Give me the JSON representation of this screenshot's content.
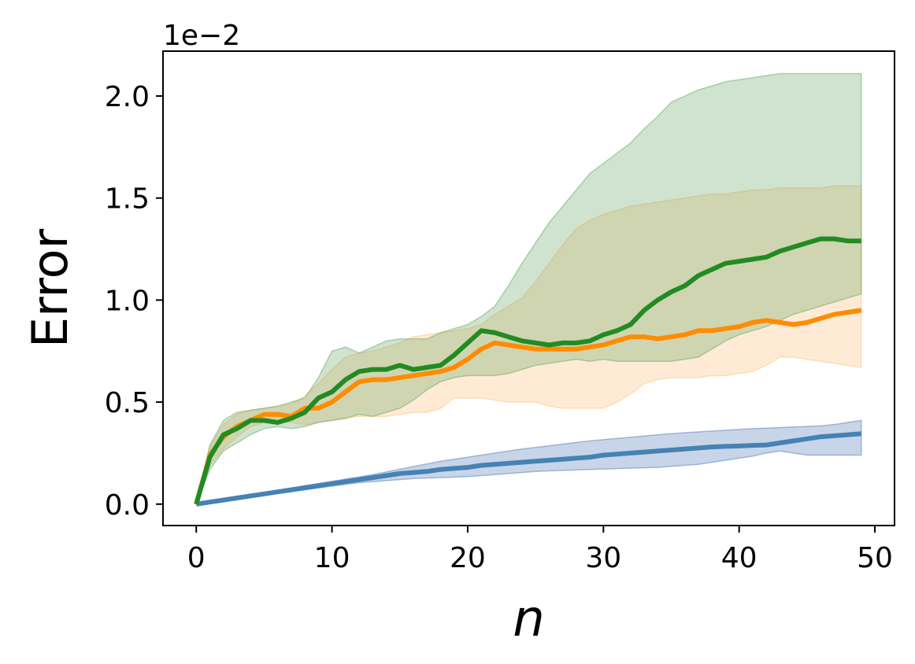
{
  "chart_data": {
    "type": "line",
    "title": "",
    "xlabel": "n",
    "ylabel": "Error",
    "y_scale_label": "1e−2",
    "xlim": [
      -2.45,
      51.45
    ],
    "ylim": [
      -0.105,
      2.22
    ],
    "x_ticks": [
      0,
      10,
      20,
      30,
      40,
      50
    ],
    "x_tick_labels": [
      "0",
      "10",
      "20",
      "30",
      "40",
      "50"
    ],
    "y_ticks": [
      0.0,
      0.5,
      1.0,
      1.5,
      2.0
    ],
    "y_tick_labels": [
      "0.0",
      "0.5",
      "1.0",
      "1.5",
      "2.0"
    ],
    "grid": false,
    "legend": "none",
    "x": [
      0,
      1,
      2,
      3,
      4,
      5,
      6,
      7,
      8,
      9,
      10,
      11,
      12,
      13,
      14,
      15,
      16,
      17,
      18,
      19,
      20,
      21,
      22,
      23,
      24,
      25,
      26,
      27,
      28,
      29,
      30,
      31,
      32,
      33,
      34,
      35,
      36,
      37,
      38,
      39,
      40,
      41,
      42,
      43,
      44,
      45,
      46,
      47,
      48,
      49
    ],
    "series": [
      {
        "color": "#4682b4",
        "band_color": "#4a74b4",
        "values": [
          0.0,
          0.01,
          0.02,
          0.03,
          0.04,
          0.05,
          0.06,
          0.07,
          0.08,
          0.09,
          0.1,
          0.11,
          0.12,
          0.13,
          0.14,
          0.15,
          0.155,
          0.16,
          0.17,
          0.175,
          0.18,
          0.19,
          0.195,
          0.2,
          0.205,
          0.21,
          0.215,
          0.22,
          0.225,
          0.23,
          0.24,
          0.245,
          0.25,
          0.255,
          0.26,
          0.265,
          0.27,
          0.275,
          0.28,
          0.283,
          0.285,
          0.288,
          0.29,
          0.3,
          0.31,
          0.32,
          0.33,
          0.335,
          0.34,
          0.345
        ],
        "lower": [
          0.0,
          0.008,
          0.016,
          0.025,
          0.034,
          0.043,
          0.052,
          0.061,
          0.07,
          0.079,
          0.088,
          0.097,
          0.105,
          0.11,
          0.115,
          0.12,
          0.125,
          0.128,
          0.13,
          0.132,
          0.135,
          0.14,
          0.145,
          0.15,
          0.155,
          0.16,
          0.163,
          0.165,
          0.168,
          0.17,
          0.172,
          0.174,
          0.176,
          0.178,
          0.18,
          0.185,
          0.19,
          0.195,
          0.205,
          0.215,
          0.225,
          0.235,
          0.25,
          0.26,
          0.25,
          0.24,
          0.24,
          0.24,
          0.24,
          0.24
        ],
        "upper": [
          0.0,
          0.012,
          0.024,
          0.035,
          0.046,
          0.057,
          0.068,
          0.079,
          0.09,
          0.101,
          0.112,
          0.123,
          0.133,
          0.145,
          0.158,
          0.171,
          0.184,
          0.197,
          0.21,
          0.22,
          0.23,
          0.24,
          0.25,
          0.26,
          0.27,
          0.278,
          0.286,
          0.294,
          0.302,
          0.31,
          0.316,
          0.322,
          0.328,
          0.334,
          0.34,
          0.345,
          0.35,
          0.354,
          0.358,
          0.362,
          0.366,
          0.37,
          0.372,
          0.375,
          0.378,
          0.381,
          0.384,
          0.39,
          0.4,
          0.41
        ]
      },
      {
        "color": "#ff8c00",
        "band_color": "#ffbe73",
        "values": [
          0.0,
          0.24,
          0.33,
          0.38,
          0.41,
          0.44,
          0.44,
          0.43,
          0.47,
          0.47,
          0.5,
          0.55,
          0.6,
          0.61,
          0.61,
          0.62,
          0.63,
          0.64,
          0.65,
          0.67,
          0.71,
          0.76,
          0.79,
          0.78,
          0.77,
          0.76,
          0.76,
          0.76,
          0.76,
          0.77,
          0.78,
          0.8,
          0.82,
          0.82,
          0.81,
          0.82,
          0.83,
          0.85,
          0.85,
          0.86,
          0.87,
          0.89,
          0.9,
          0.89,
          0.88,
          0.89,
          0.91,
          0.93,
          0.94,
          0.95
        ],
        "lower": [
          0.0,
          0.19,
          0.27,
          0.33,
          0.38,
          0.4,
          0.4,
          0.4,
          0.39,
          0.4,
          0.41,
          0.42,
          0.43,
          0.43,
          0.43,
          0.44,
          0.45,
          0.45,
          0.47,
          0.52,
          0.52,
          0.52,
          0.51,
          0.5,
          0.5,
          0.5,
          0.48,
          0.47,
          0.47,
          0.47,
          0.47,
          0.5,
          0.54,
          0.59,
          0.61,
          0.62,
          0.62,
          0.62,
          0.63,
          0.63,
          0.64,
          0.65,
          0.68,
          0.72,
          0.72,
          0.71,
          0.7,
          0.69,
          0.68,
          0.67
        ],
        "upper": [
          0.0,
          0.28,
          0.39,
          0.44,
          0.46,
          0.47,
          0.48,
          0.49,
          0.53,
          0.59,
          0.66,
          0.72,
          0.74,
          0.75,
          0.77,
          0.79,
          0.82,
          0.83,
          0.84,
          0.85,
          0.86,
          0.88,
          0.93,
          0.97,
          1.01,
          1.09,
          1.18,
          1.27,
          1.35,
          1.39,
          1.42,
          1.44,
          1.46,
          1.47,
          1.48,
          1.49,
          1.5,
          1.51,
          1.52,
          1.52,
          1.53,
          1.54,
          1.54,
          1.55,
          1.55,
          1.55,
          1.55,
          1.56,
          1.56,
          1.56
        ]
      },
      {
        "color": "#228b22",
        "band_color": "#5fa35f",
        "values": [
          0.0,
          0.23,
          0.34,
          0.37,
          0.41,
          0.41,
          0.4,
          0.42,
          0.45,
          0.52,
          0.55,
          0.61,
          0.65,
          0.66,
          0.66,
          0.68,
          0.66,
          0.67,
          0.68,
          0.73,
          0.79,
          0.85,
          0.84,
          0.82,
          0.8,
          0.79,
          0.78,
          0.79,
          0.79,
          0.8,
          0.83,
          0.85,
          0.88,
          0.95,
          1.0,
          1.04,
          1.07,
          1.12,
          1.15,
          1.18,
          1.19,
          1.2,
          1.21,
          1.24,
          1.26,
          1.28,
          1.3,
          1.3,
          1.29,
          1.29
        ],
        "lower": [
          0.0,
          0.17,
          0.26,
          0.3,
          0.34,
          0.37,
          0.38,
          0.37,
          0.38,
          0.4,
          0.41,
          0.42,
          0.44,
          0.43,
          0.45,
          0.47,
          0.51,
          0.56,
          0.6,
          0.62,
          0.63,
          0.63,
          0.63,
          0.64,
          0.66,
          0.68,
          0.69,
          0.7,
          0.71,
          0.7,
          0.71,
          0.7,
          0.7,
          0.7,
          0.7,
          0.7,
          0.71,
          0.72,
          0.76,
          0.8,
          0.83,
          0.85,
          0.87,
          0.9,
          0.93,
          0.95,
          0.97,
          0.99,
          1.01,
          1.03
        ],
        "upper": [
          0.0,
          0.29,
          0.41,
          0.45,
          0.46,
          0.47,
          0.48,
          0.5,
          0.52,
          0.62,
          0.75,
          0.77,
          0.74,
          0.77,
          0.8,
          0.81,
          0.81,
          0.81,
          0.84,
          0.86,
          0.88,
          0.92,
          0.97,
          1.07,
          1.18,
          1.28,
          1.38,
          1.46,
          1.54,
          1.62,
          1.67,
          1.72,
          1.77,
          1.84,
          1.9,
          1.97,
          2.0,
          2.03,
          2.05,
          2.07,
          2.08,
          2.09,
          2.1,
          2.11,
          2.11,
          2.11,
          2.11,
          2.11,
          2.11,
          2.11
        ]
      }
    ]
  }
}
